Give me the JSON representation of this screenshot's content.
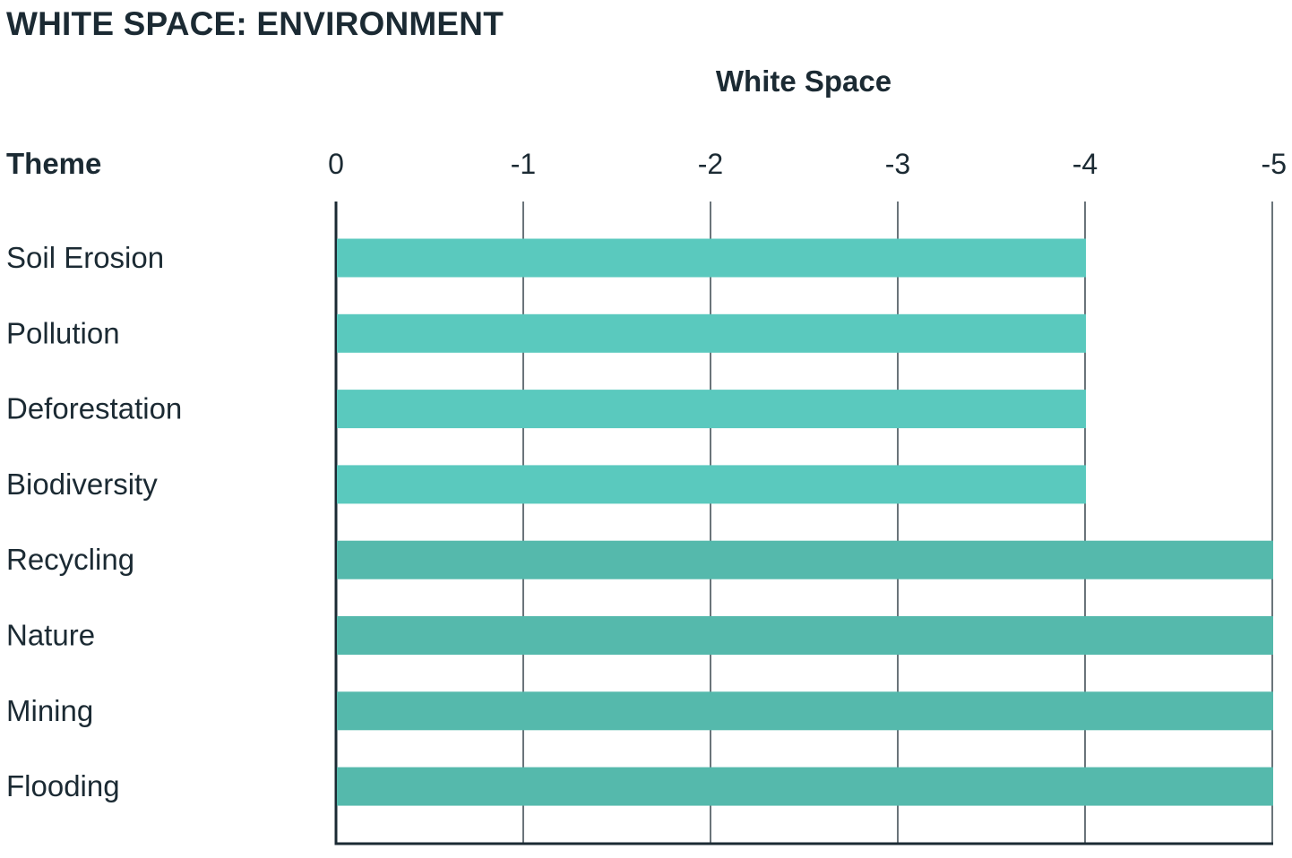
{
  "title": "WHITE SPACE: ENVIRONMENT",
  "chart_data": {
    "type": "bar",
    "orientation": "horizontal",
    "category_header": "Theme",
    "xlabel": "White Space",
    "xlim": [
      0,
      -5
    ],
    "xticks": [
      0,
      -1,
      -2,
      -3,
      -4,
      -5
    ],
    "xtick_labels": [
      "0",
      "-1",
      "-2",
      "-3",
      "-4",
      "-5"
    ],
    "grid": true,
    "categories": [
      "Soil Erosion",
      "Pollution",
      "Deforestation",
      "Biodiversity",
      "Recycling",
      "Nature",
      "Mining",
      "Flooding"
    ],
    "values": [
      -4,
      -4,
      -4,
      -4,
      -5,
      -5,
      -5,
      -5
    ],
    "colors": {
      "bar_light": "#5ac9be",
      "bar_dark": "#55b9ac",
      "grid": "#1b2a33",
      "text": "#1b2a33"
    }
  }
}
